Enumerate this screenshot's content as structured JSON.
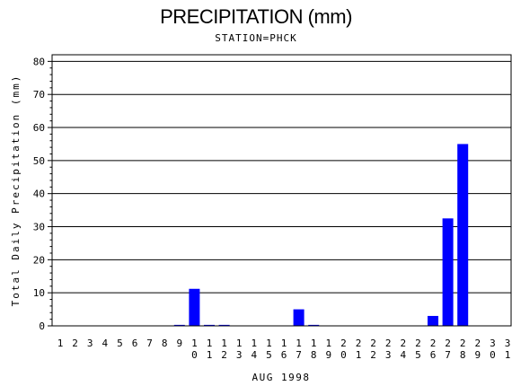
{
  "chart_data": {
    "type": "bar",
    "title": "PRECIPITATION (mm)",
    "subtitle": "STATION=PHCK",
    "xlabel": "AUG 1998",
    "ylabel": "Total Daily Precipitation (mm)",
    "ylim": [
      0,
      82
    ],
    "yticks": [
      0,
      10,
      20,
      30,
      40,
      50,
      60,
      70,
      80
    ],
    "grid": true,
    "bar_color": "#0000ff",
    "categories": [
      "1",
      "2",
      "3",
      "4",
      "5",
      "6",
      "7",
      "8",
      "9",
      "10",
      "11",
      "12",
      "13",
      "14",
      "15",
      "16",
      "17",
      "18",
      "19",
      "20",
      "21",
      "22",
      "23",
      "24",
      "25",
      "26",
      "27",
      "28",
      "29",
      "30",
      "31"
    ],
    "values": [
      0,
      0,
      0,
      0,
      0,
      0,
      0,
      0,
      0.3,
      11.2,
      0.3,
      0.3,
      0,
      0,
      0,
      0,
      5.0,
      0.3,
      0,
      0,
      0,
      0,
      0,
      0,
      0,
      3.0,
      32.5,
      55.0,
      0,
      0,
      0
    ]
  }
}
